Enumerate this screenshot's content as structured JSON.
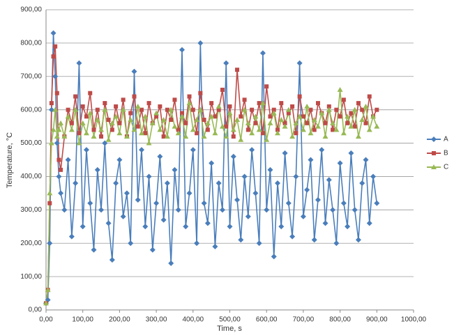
{
  "chart_data": {
    "type": "line",
    "x_label": "Time, s",
    "y_label": "Temperature, °C",
    "x": [
      0,
      5,
      10,
      15,
      20,
      25,
      30,
      35,
      40,
      50,
      60,
      70,
      80,
      90,
      100,
      110,
      120,
      130,
      140,
      150,
      160,
      170,
      180,
      190,
      200,
      210,
      220,
      230,
      240,
      250,
      260,
      270,
      280,
      290,
      300,
      310,
      320,
      330,
      340,
      350,
      360,
      370,
      380,
      390,
      400,
      410,
      420,
      430,
      440,
      450,
      460,
      470,
      480,
      490,
      500,
      510,
      520,
      530,
      540,
      550,
      560,
      570,
      580,
      590,
      600,
      610,
      620,
      630,
      640,
      650,
      660,
      670,
      680,
      690,
      700,
      710,
      720,
      730,
      740,
      750,
      760,
      770,
      780,
      790,
      800,
      810,
      820,
      830,
      840,
      850,
      860,
      870,
      880,
      890,
      900
    ],
    "series": [
      {
        "name": "A",
        "color": "#4a7ebb",
        "marker": "diamond",
        "values": [
          20,
          30,
          200,
          600,
          830,
          700,
          500,
          400,
          350,
          300,
          450,
          220,
          380,
          740,
          250,
          480,
          320,
          180,
          420,
          300,
          500,
          260,
          150,
          380,
          450,
          280,
          350,
          200,
          715,
          330,
          480,
          250,
          400,
          180,
          320,
          460,
          270,
          380,
          140,
          420,
          300,
          780,
          250,
          350,
          480,
          200,
          800,
          320,
          260,
          440,
          190,
          380,
          300,
          740,
          250,
          460,
          330,
          210,
          400,
          280,
          480,
          350,
          200,
          770,
          300,
          420,
          160,
          380,
          250,
          470,
          320,
          220,
          400,
          740,
          280,
          360,
          450,
          210,
          330,
          480,
          260,
          390,
          300,
          200,
          440,
          320,
          250,
          470,
          300,
          210,
          380,
          450,
          260,
          400,
          320
        ]
      },
      {
        "name": "B",
        "color": "#be4b48",
        "marker": "square",
        "values": [
          20,
          60,
          320,
          620,
          760,
          790,
          650,
          450,
          420,
          520,
          600,
          560,
          640,
          530,
          610,
          580,
          650,
          540,
          600,
          520,
          620,
          570,
          540,
          610,
          560,
          630,
          520,
          590,
          640,
          550,
          600,
          530,
          620,
          560,
          580,
          610,
          520,
          600,
          570,
          630,
          540,
          590,
          560,
          640,
          600,
          530,
          650,
          570,
          540,
          620,
          580,
          600,
          660,
          550,
          610,
          520,
          720,
          580,
          630,
          540,
          600,
          560,
          620,
          530,
          670,
          580,
          600,
          540,
          620,
          560,
          590,
          610,
          530,
          640,
          580,
          560,
          600,
          540,
          620,
          590,
          560,
          610,
          540,
          600,
          580,
          630,
          560,
          590,
          550,
          620,
          600,
          560,
          640,
          580,
          600
        ]
      },
      {
        "name": "C",
        "color": "#98b954",
        "marker": "triangle",
        "values": [
          20,
          60,
          350,
          500,
          540,
          600,
          520,
          540,
          560,
          520,
          580,
          540,
          600,
          500,
          560,
          530,
          590,
          520,
          570,
          540,
          600,
          510,
          560,
          580,
          530,
          600,
          520,
          570,
          540,
          610,
          530,
          580,
          500,
          560,
          590,
          540,
          570,
          520,
          600,
          550,
          530,
          580,
          520,
          620,
          540,
          570,
          600,
          520,
          560,
          580,
          530,
          610,
          550,
          520,
          590,
          540,
          570,
          510,
          600,
          560,
          530,
          580,
          540,
          620,
          510,
          560,
          590,
          530,
          570,
          550,
          600,
          520,
          560,
          580,
          540,
          610,
          530,
          570,
          550,
          590,
          520,
          600,
          560,
          540,
          660,
          530,
          580,
          550,
          600,
          520,
          570,
          610,
          540,
          580,
          550
        ]
      }
    ],
    "xlim": [
      0,
      1000
    ],
    "xticks": [
      {
        "value": 0,
        "label": "0,00"
      },
      {
        "value": 100,
        "label": "100,00"
      },
      {
        "value": 200,
        "label": "200,00"
      },
      {
        "value": 300,
        "label": "300,00"
      },
      {
        "value": 400,
        "label": "400,00"
      },
      {
        "value": 500,
        "label": "500,00"
      },
      {
        "value": 600,
        "label": "600,00"
      },
      {
        "value": 700,
        "label": "700,00"
      },
      {
        "value": 800,
        "label": "800,00"
      },
      {
        "value": 900,
        "label": "900,00"
      },
      {
        "value": 1000,
        "label": "1000,00"
      }
    ],
    "ylim": [
      0,
      900
    ],
    "yticks": [
      {
        "value": 0,
        "label": "0,00"
      },
      {
        "value": 100,
        "label": "100,00"
      },
      {
        "value": 200,
        "label": "200,00"
      },
      {
        "value": 300,
        "label": "300,00"
      },
      {
        "value": 400,
        "label": "400,00"
      },
      {
        "value": 500,
        "label": "500,00"
      },
      {
        "value": 600,
        "label": "600,00"
      },
      {
        "value": 700,
        "label": "700,00"
      },
      {
        "value": 800,
        "label": "800,00"
      },
      {
        "value": 900,
        "label": "900,00"
      }
    ],
    "grid": true,
    "legend": "right"
  }
}
